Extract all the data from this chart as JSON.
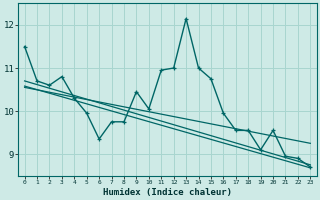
{
  "xlabel": "Humidex (Indice chaleur)",
  "background_color": "#ceeae6",
  "grid_color": "#a8d5cf",
  "line_color": "#006666",
  "xlim": [
    -0.5,
    23.5
  ],
  "ylim": [
    8.5,
    12.5
  ],
  "yticks": [
    9,
    10,
    11,
    12
  ],
  "xticks": [
    0,
    1,
    2,
    3,
    4,
    5,
    6,
    7,
    8,
    9,
    10,
    11,
    12,
    13,
    14,
    15,
    16,
    17,
    18,
    19,
    20,
    21,
    22,
    23
  ],
  "curve1_x": [
    0,
    1,
    2,
    3,
    4,
    5,
    6,
    7,
    8,
    9,
    10,
    11,
    12,
    13,
    14,
    15,
    16,
    17,
    18,
    19,
    20,
    21,
    22,
    23
  ],
  "curve1_y": [
    11.5,
    10.7,
    10.6,
    10.8,
    10.3,
    9.95,
    9.35,
    9.75,
    9.75,
    10.45,
    10.05,
    10.95,
    11.0,
    12.15,
    11.0,
    10.75,
    9.95,
    9.55,
    9.55,
    9.1,
    9.55,
    8.95,
    8.9,
    8.7
  ],
  "line1_x": [
    0,
    23
  ],
  "line1_y": [
    10.7,
    8.75
  ],
  "line2_x": [
    0,
    23
  ],
  "line2_y": [
    10.58,
    8.68
  ],
  "line3_x": [
    0,
    23
  ],
  "line3_y": [
    10.55,
    9.25
  ]
}
